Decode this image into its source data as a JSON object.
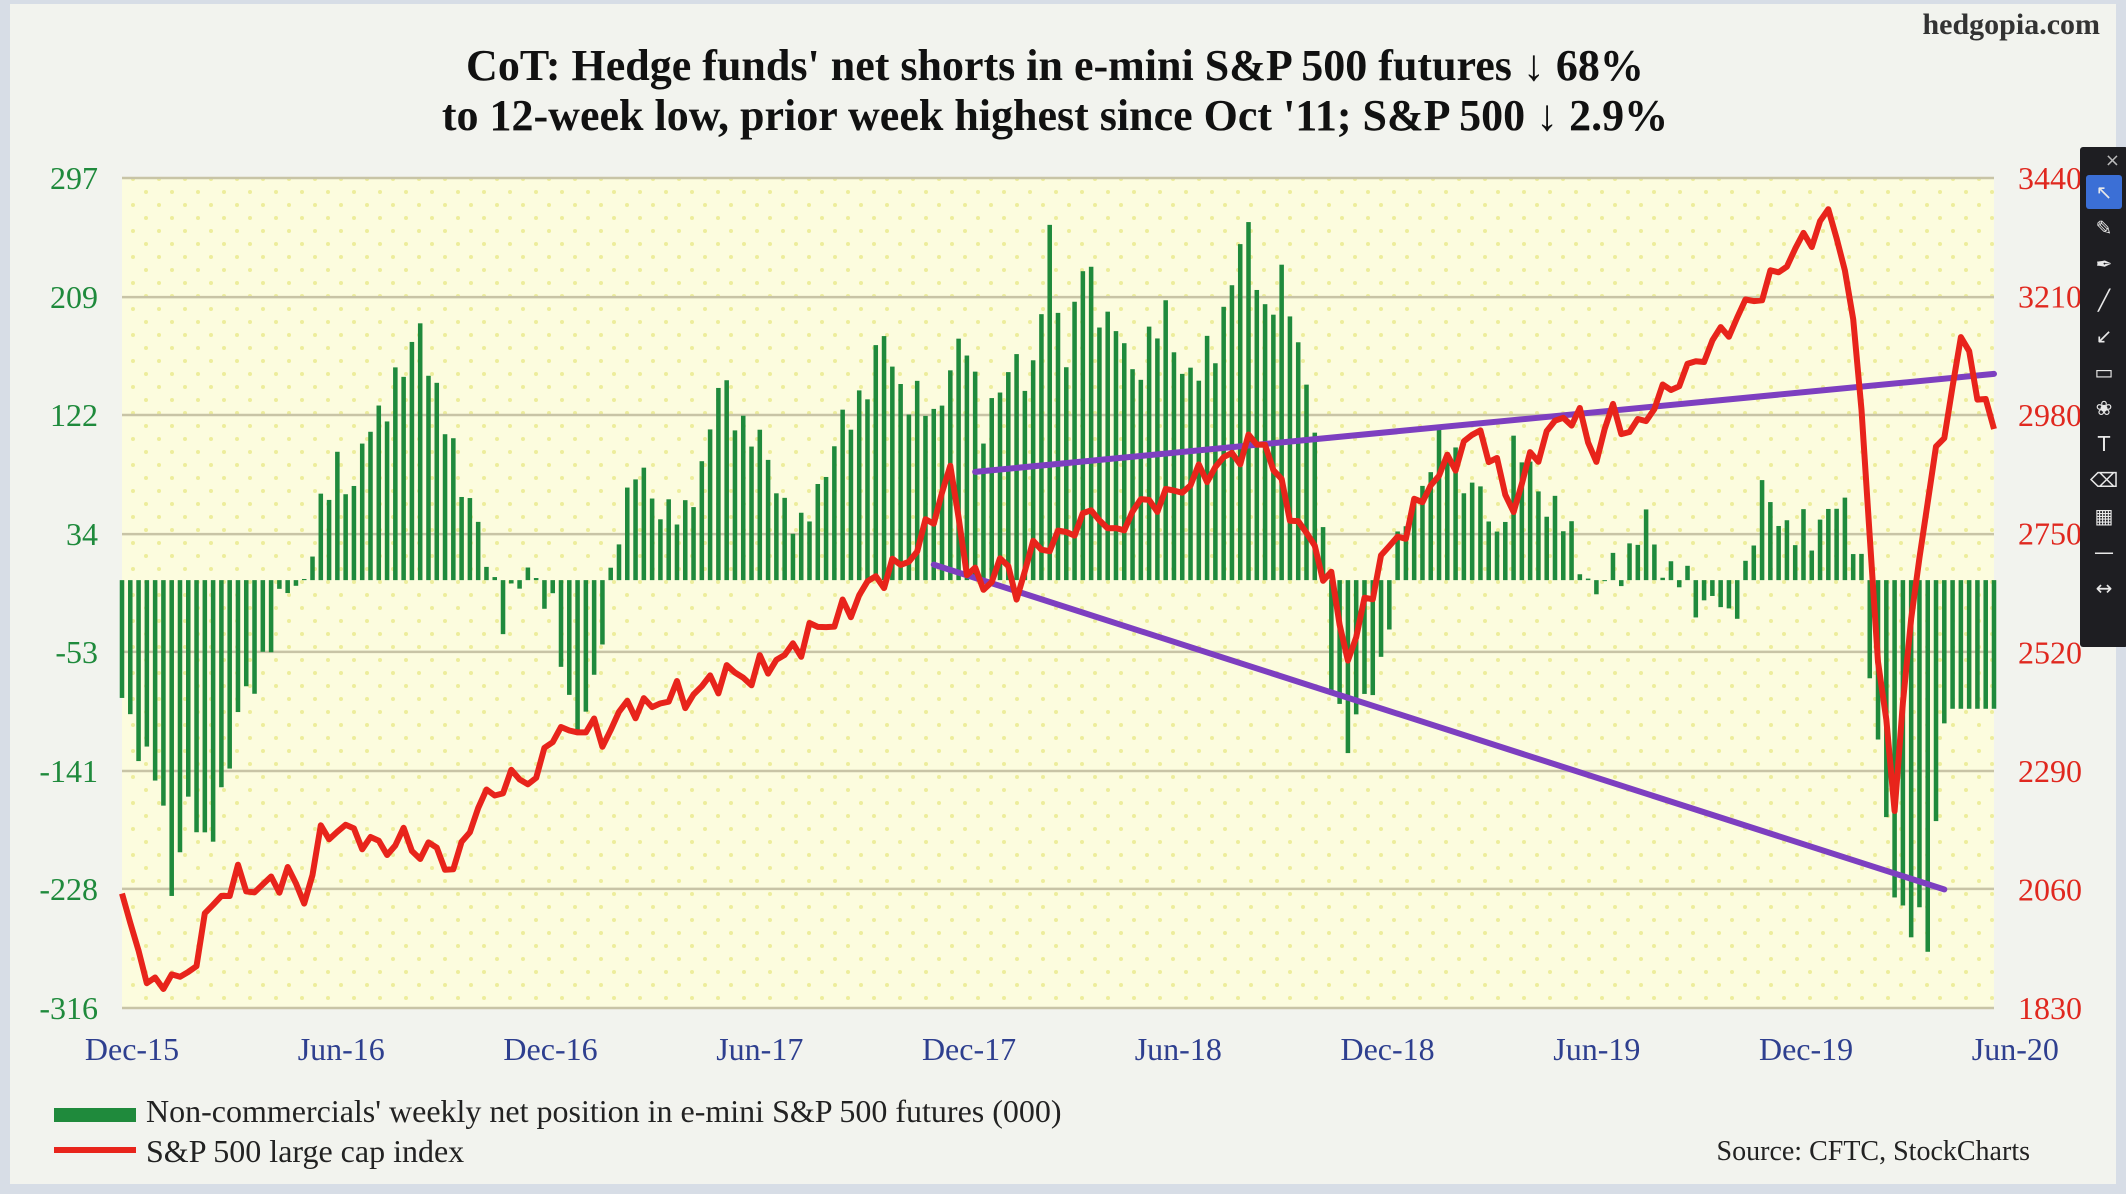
{
  "watermark": "hedgopia.com",
  "title_line1": "CoT: Hedge funds' net shorts in e-mini S&P 500 futures ↓ 68%",
  "title_line2": "to 12-week low, prior week highest since Oct '11; S&P 500 ↓ 2.9%",
  "legend": {
    "bars_label": "Non-commercials' weekly net position in e-mini S&P 500 futures (000)",
    "line_label": "S&P 500 large cap index"
  },
  "source": "Source: CFTC, StockCharts",
  "colors": {
    "bars": "#1f8a3c",
    "line": "#e8241b",
    "trendline": "#7d3fc0",
    "left_axis": "#1f8a3c",
    "right_axis": "#e0281f",
    "x_axis": "#2e3f8f",
    "plot_bg": "#fcfcde",
    "grid": "#c8c4a6"
  },
  "toolbar": {
    "close_icon": "×",
    "tools": [
      {
        "name": "pointer-tool",
        "glyph": "↖",
        "active": true
      },
      {
        "name": "pencil-tool",
        "glyph": "✎"
      },
      {
        "name": "marker-tool",
        "glyph": "✒"
      },
      {
        "name": "line-tool",
        "glyph": "╱"
      },
      {
        "name": "arrow-tool",
        "glyph": "↙"
      },
      {
        "name": "rectangle-tool",
        "glyph": "▭"
      },
      {
        "name": "palette-tool",
        "glyph": "❀"
      },
      {
        "name": "text-tool",
        "glyph": "T"
      },
      {
        "name": "eraser-tool",
        "glyph": "⌫"
      },
      {
        "name": "pattern-tool",
        "glyph": "▦"
      },
      {
        "name": "stroke-width-tool",
        "glyph": "—"
      },
      {
        "name": "expand-tool",
        "glyph": "↔"
      }
    ]
  },
  "chart_data": {
    "type": "bar",
    "title": "CoT: Hedge funds' net shorts in e-mini S&P 500 futures ↓ 68% to 12-week low, prior week highest since Oct '11; S&P 500 ↓ 2.9%",
    "xlabel": "",
    "x_ticks": [
      "Dec-15",
      "Jun-16",
      "Dec-16",
      "Jun-17",
      "Dec-17",
      "Jun-18",
      "Dec-18",
      "Jun-19",
      "Dec-19",
      "Jun-20"
    ],
    "y_left": {
      "ticks": [
        297,
        209,
        122,
        34,
        -53,
        -141,
        -228,
        -316
      ],
      "ylim": [
        -316,
        297
      ],
      "label": ""
    },
    "y_right": {
      "ticks": [
        3440,
        3210,
        2980,
        2750,
        2520,
        2290,
        2060,
        1830
      ],
      "ylim": [
        1830,
        3440
      ],
      "label": ""
    },
    "grid": true,
    "legend_position": "bottom-left",
    "bar_anchors": [
      [
        0,
        -95
      ],
      [
        4,
        -140
      ],
      [
        6,
        -228
      ],
      [
        8,
        -160
      ],
      [
        10,
        -205
      ],
      [
        12,
        -155
      ],
      [
        14,
        -105
      ],
      [
        18,
        -40
      ],
      [
        20,
        -8
      ],
      [
        22,
        5
      ],
      [
        24,
        45
      ],
      [
        26,
        90
      ],
      [
        28,
        65
      ],
      [
        30,
        115
      ],
      [
        32,
        135
      ],
      [
        34,
        150
      ],
      [
        36,
        195
      ],
      [
        38,
        130
      ],
      [
        40,
        95
      ],
      [
        42,
        60
      ],
      [
        44,
        10
      ],
      [
        46,
        -20
      ],
      [
        48,
        -5
      ],
      [
        50,
        5
      ],
      [
        52,
        -20
      ],
      [
        54,
        -100
      ],
      [
        56,
        -95
      ],
      [
        58,
        -50
      ],
      [
        60,
        45
      ],
      [
        62,
        80
      ],
      [
        64,
        60
      ],
      [
        66,
        55
      ],
      [
        68,
        40
      ],
      [
        70,
        90
      ],
      [
        72,
        140
      ],
      [
        74,
        125
      ],
      [
        76,
        110
      ],
      [
        78,
        85
      ],
      [
        80,
        60
      ],
      [
        82,
        30
      ],
      [
        84,
        70
      ],
      [
        86,
        100
      ],
      [
        88,
        120
      ],
      [
        90,
        150
      ],
      [
        92,
        175
      ],
      [
        94,
        145
      ],
      [
        96,
        130
      ],
      [
        98,
        120
      ],
      [
        100,
        160
      ],
      [
        102,
        170
      ],
      [
        104,
        120
      ],
      [
        106,
        135
      ],
      [
        108,
        165
      ],
      [
        110,
        150
      ],
      [
        112,
        250
      ],
      [
        114,
        165
      ],
      [
        116,
        230
      ],
      [
        118,
        205
      ],
      [
        120,
        185
      ],
      [
        122,
        150
      ],
      [
        124,
        180
      ],
      [
        126,
        190
      ],
      [
        128,
        160
      ],
      [
        130,
        150
      ],
      [
        132,
        175
      ],
      [
        134,
        225
      ],
      [
        136,
        255
      ],
      [
        138,
        200
      ],
      [
        140,
        215
      ],
      [
        142,
        180
      ],
      [
        144,
        115
      ],
      [
        146,
        -75
      ],
      [
        148,
        -115
      ],
      [
        150,
        -95
      ],
      [
        152,
        -60
      ],
      [
        154,
        20
      ],
      [
        156,
        60
      ],
      [
        158,
        90
      ],
      [
        160,
        100
      ],
      [
        162,
        80
      ],
      [
        164,
        60
      ],
      [
        166,
        30
      ],
      [
        168,
        95
      ],
      [
        170,
        80
      ],
      [
        172,
        60
      ],
      [
        174,
        40
      ],
      [
        176,
        20
      ],
      [
        178,
        -15
      ],
      [
        180,
        10
      ],
      [
        182,
        20
      ],
      [
        184,
        40
      ],
      [
        186,
        15
      ],
      [
        188,
        0
      ],
      [
        190,
        -15
      ],
      [
        192,
        -10
      ],
      [
        194,
        -35
      ],
      [
        196,
        10
      ],
      [
        198,
        60
      ],
      [
        200,
        50
      ],
      [
        202,
        35
      ],
      [
        204,
        30
      ],
      [
        206,
        60
      ],
      [
        208,
        45
      ],
      [
        210,
        15
      ],
      [
        212,
        -130
      ],
      [
        214,
        -230
      ],
      [
        216,
        -250
      ],
      [
        218,
        -270
      ],
      [
        220,
        -95
      ]
    ],
    "sp500": [
      [
        0,
        2040
      ],
      [
        2,
        1940
      ],
      [
        4,
        1860
      ],
      [
        6,
        1900
      ],
      [
        8,
        1880
      ],
      [
        10,
        2000
      ],
      [
        12,
        2050
      ],
      [
        14,
        2080
      ],
      [
        16,
        2060
      ],
      [
        18,
        2070
      ],
      [
        20,
        2090
      ],
      [
        22,
        2040
      ],
      [
        24,
        2160
      ],
      [
        26,
        2180
      ],
      [
        28,
        2170
      ],
      [
        30,
        2150
      ],
      [
        32,
        2140
      ],
      [
        34,
        2160
      ],
      [
        36,
        2130
      ],
      [
        38,
        2140
      ],
      [
        40,
        2090
      ],
      [
        42,
        2190
      ],
      [
        44,
        2240
      ],
      [
        46,
        2260
      ],
      [
        48,
        2280
      ],
      [
        50,
        2270
      ],
      [
        52,
        2370
      ],
      [
        54,
        2360
      ],
      [
        56,
        2380
      ],
      [
        58,
        2350
      ],
      [
        60,
        2400
      ],
      [
        62,
        2420
      ],
      [
        64,
        2410
      ],
      [
        66,
        2440
      ],
      [
        68,
        2430
      ],
      [
        70,
        2450
      ],
      [
        72,
        2470
      ],
      [
        74,
        2480
      ],
      [
        76,
        2470
      ],
      [
        78,
        2500
      ],
      [
        80,
        2510
      ],
      [
        82,
        2540
      ],
      [
        84,
        2570
      ],
      [
        86,
        2580
      ],
      [
        88,
        2610
      ],
      [
        90,
        2650
      ],
      [
        92,
        2670
      ],
      [
        94,
        2690
      ],
      [
        96,
        2720
      ],
      [
        98,
        2790
      ],
      [
        100,
        2870
      ],
      [
        102,
        2690
      ],
      [
        104,
        2640
      ],
      [
        106,
        2700
      ],
      [
        108,
        2640
      ],
      [
        110,
        2720
      ],
      [
        112,
        2730
      ],
      [
        114,
        2750
      ],
      [
        116,
        2780
      ],
      [
        118,
        2790
      ],
      [
        120,
        2740
      ],
      [
        122,
        2800
      ],
      [
        124,
        2810
      ],
      [
        126,
        2820
      ],
      [
        128,
        2840
      ],
      [
        130,
        2860
      ],
      [
        132,
        2880
      ],
      [
        134,
        2900
      ],
      [
        136,
        2920
      ],
      [
        138,
        2930
      ],
      [
        140,
        2830
      ],
      [
        142,
        2770
      ],
      [
        144,
        2720
      ],
      [
        146,
        2650
      ],
      [
        148,
        2510
      ],
      [
        150,
        2600
      ],
      [
        152,
        2700
      ],
      [
        154,
        2740
      ],
      [
        156,
        2790
      ],
      [
        158,
        2850
      ],
      [
        160,
        2880
      ],
      [
        162,
        2920
      ],
      [
        164,
        2950
      ],
      [
        166,
        2870
      ],
      [
        168,
        2800
      ],
      [
        170,
        2890
      ],
      [
        172,
        2940
      ],
      [
        174,
        2980
      ],
      [
        176,
        2970
      ],
      [
        178,
        2900
      ],
      [
        180,
        2990
      ],
      [
        182,
        2940
      ],
      [
        184,
        2980
      ],
      [
        186,
        3020
      ],
      [
        188,
        3050
      ],
      [
        190,
        3080
      ],
      [
        192,
        3120
      ],
      [
        194,
        3150
      ],
      [
        196,
        3190
      ],
      [
        198,
        3220
      ],
      [
        200,
        3260
      ],
      [
        202,
        3300
      ],
      [
        204,
        3330
      ],
      [
        206,
        3370
      ],
      [
        208,
        3280
      ],
      [
        210,
        3000
      ],
      [
        212,
        2500
      ],
      [
        214,
        2240
      ],
      [
        216,
        2580
      ],
      [
        218,
        2830
      ],
      [
        220,
        2950
      ],
      [
        222,
        3130
      ],
      [
        224,
        3040
      ],
      [
        226,
        2950
      ]
    ],
    "series": [
      {
        "name": "Non-commercials' weekly net position in e-mini S&P 500 futures (000)",
        "axis": "left",
        "type": "bar"
      },
      {
        "name": "S&P 500 large cap index",
        "axis": "right",
        "type": "line"
      }
    ],
    "trendlines": [
      {
        "axis": "right",
        "from": [
          103,
          2870
        ],
        "to": [
          226,
          3060
        ]
      },
      {
        "axis": "right",
        "from": [
          98,
          2690
        ],
        "to": [
          220,
          2060
        ]
      }
    ]
  }
}
